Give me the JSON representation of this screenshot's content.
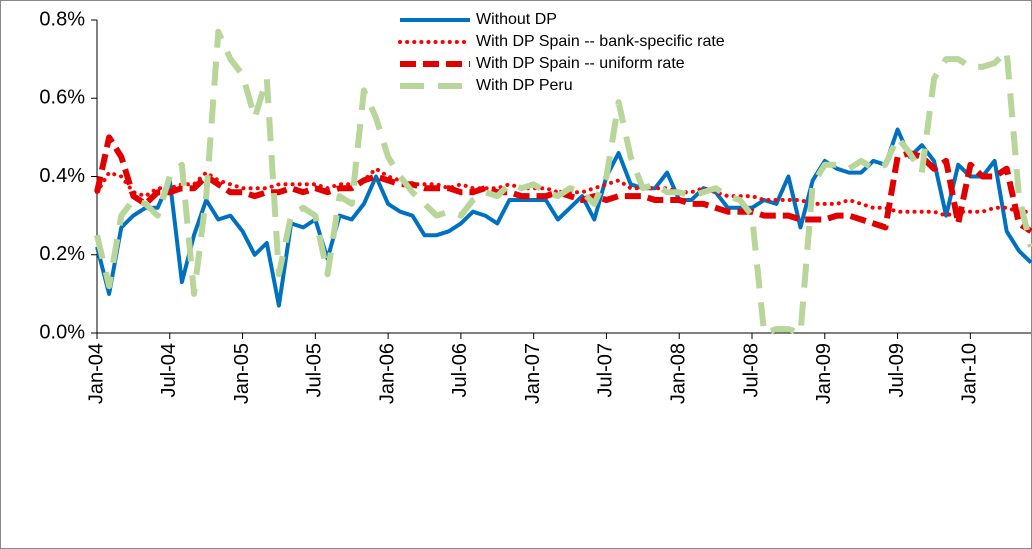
{
  "chart_data": {
    "type": "line",
    "categories": [
      "Jan-04",
      null,
      null,
      null,
      null,
      null,
      "Jul-04",
      null,
      null,
      null,
      null,
      null,
      "Jan-05",
      null,
      null,
      null,
      null,
      null,
      "Jul-05",
      null,
      null,
      null,
      null,
      null,
      "Jan-06",
      null,
      null,
      null,
      null,
      null,
      "Jul-06",
      null,
      null,
      null,
      null,
      null,
      "Jan-07",
      null,
      null,
      null,
      null,
      null,
      "Jul-07",
      null,
      null,
      null,
      null,
      null,
      "Jan-08",
      null,
      null,
      null,
      null,
      null,
      "Jul-08",
      null,
      null,
      null,
      null,
      null,
      "Jan-09",
      null,
      null,
      null,
      null,
      null,
      "Jul-09",
      null,
      null,
      null,
      null,
      null,
      "Jan-10",
      null,
      null,
      null,
      null,
      null
    ],
    "series": [
      {
        "name": "Without DP",
        "color": "#0070c0",
        "style": "solid",
        "values": [
          0.22,
          0.1,
          0.27,
          0.3,
          0.32,
          0.32,
          0.39,
          0.13,
          0.25,
          0.34,
          0.29,
          0.3,
          0.26,
          0.2,
          0.23,
          0.07,
          0.28,
          0.27,
          0.29,
          0.19,
          0.3,
          0.29,
          0.33,
          0.4,
          0.33,
          0.31,
          0.3,
          0.25,
          0.25,
          0.26,
          0.28,
          0.31,
          0.3,
          0.28,
          0.34,
          0.34,
          0.34,
          0.34,
          0.29,
          0.32,
          0.35,
          0.29,
          0.4,
          0.46,
          0.38,
          0.37,
          0.37,
          0.41,
          0.34,
          0.34,
          0.37,
          0.36,
          0.32,
          0.32,
          0.32,
          0.34,
          0.33,
          0.4,
          0.27,
          0.39,
          0.44,
          0.42,
          0.41,
          0.41,
          0.44,
          0.43,
          0.52,
          0.45,
          0.48,
          0.44,
          0.3,
          0.43,
          0.4,
          0.4,
          0.44,
          0.26,
          0.21,
          0.18
        ]
      },
      {
        "name": "With DP Spain -- bank-specific rate",
        "color": "#ff0000",
        "style": "dotted",
        "values": [
          0.36,
          0.41,
          0.4,
          0.36,
          0.35,
          0.37,
          0.37,
          0.38,
          0.38,
          0.41,
          0.39,
          0.38,
          0.37,
          0.37,
          0.37,
          0.38,
          0.38,
          0.38,
          0.38,
          0.37,
          0.38,
          0.38,
          0.39,
          0.42,
          0.4,
          0.39,
          0.38,
          0.38,
          0.38,
          0.37,
          0.38,
          0.37,
          0.37,
          0.37,
          0.38,
          0.37,
          0.37,
          0.37,
          0.36,
          0.36,
          0.36,
          0.37,
          0.38,
          0.39,
          0.37,
          0.37,
          0.37,
          0.37,
          0.36,
          0.36,
          0.37,
          0.36,
          0.35,
          0.35,
          0.35,
          0.34,
          0.34,
          0.34,
          0.34,
          0.33,
          0.33,
          0.33,
          0.34,
          0.33,
          0.32,
          0.32,
          0.31,
          0.31,
          0.31,
          0.31,
          0.3,
          0.31,
          0.31,
          0.31,
          0.32,
          0.32,
          0.31,
          0.31
        ]
      },
      {
        "name": "With DP Spain -- uniform rate",
        "color": "#e00000",
        "style": "dashed",
        "values": [
          0.36,
          0.5,
          0.45,
          0.35,
          0.33,
          0.36,
          0.36,
          0.37,
          0.37,
          0.4,
          0.38,
          0.36,
          0.36,
          0.35,
          0.36,
          0.36,
          0.37,
          0.36,
          0.37,
          0.36,
          0.37,
          0.37,
          0.39,
          0.4,
          0.39,
          0.38,
          0.38,
          0.37,
          0.37,
          0.37,
          0.36,
          0.36,
          0.37,
          0.36,
          0.36,
          0.35,
          0.35,
          0.35,
          0.36,
          0.35,
          0.34,
          0.35,
          0.34,
          0.35,
          0.35,
          0.35,
          0.34,
          0.34,
          0.34,
          0.33,
          0.33,
          0.32,
          0.31,
          0.31,
          0.31,
          0.3,
          0.3,
          0.3,
          0.29,
          0.29,
          0.29,
          0.3,
          0.3,
          0.29,
          0.28,
          0.27,
          0.45,
          0.46,
          0.45,
          0.42,
          0.44,
          0.28,
          0.43,
          0.4,
          0.4,
          0.42,
          0.28,
          0.26
        ]
      },
      {
        "name": "With DP Peru",
        "color": "#b8d59a",
        "style": "longdash",
        "values": [
          0.25,
          0.12,
          0.3,
          0.34,
          0.33,
          0.3,
          0.4,
          0.43,
          0.1,
          0.35,
          0.77,
          0.7,
          0.66,
          0.55,
          0.65,
          0.15,
          0.3,
          0.32,
          0.3,
          0.15,
          0.35,
          0.33,
          0.62,
          0.55,
          0.45,
          0.4,
          0.36,
          0.33,
          0.3,
          0.31,
          0.3,
          0.34,
          0.36,
          0.35,
          0.38,
          0.37,
          0.38,
          0.36,
          0.35,
          0.37,
          0.36,
          0.33,
          0.4,
          0.59,
          0.45,
          0.37,
          0.38,
          0.36,
          0.36,
          0.35,
          0.36,
          0.37,
          0.35,
          0.34,
          0.3,
          0.0,
          0.01,
          0.01,
          0.0,
          0.38,
          0.43,
          0.43,
          0.42,
          0.44,
          0.42,
          0.43,
          0.5,
          0.46,
          0.41,
          0.65,
          0.7,
          0.7,
          0.68,
          0.68,
          0.69,
          0.72,
          0.35,
          0.22
        ]
      }
    ],
    "ylim": [
      0,
      0.8
    ],
    "yticks": [
      {
        "value": 0,
        "label": "0.0%"
      },
      {
        "value": 0.2,
        "label": "0.2%"
      },
      {
        "value": 0.4,
        "label": "0.4%"
      },
      {
        "value": 0.6,
        "label": "0.6%"
      },
      {
        "value": 0.8,
        "label": "0.8%"
      }
    ],
    "grid": false,
    "legend": "top"
  }
}
